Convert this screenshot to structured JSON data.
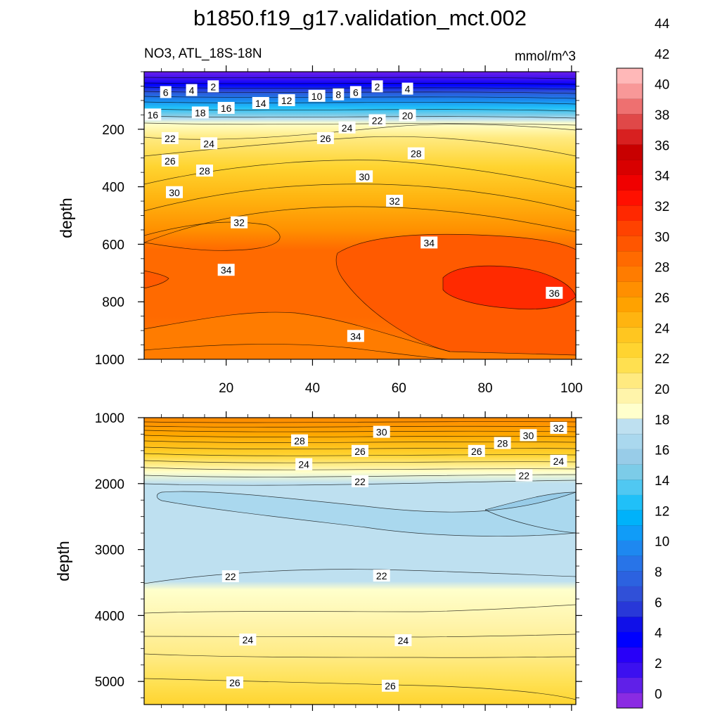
{
  "title": "b1850.f19_g17.validation_mct.002",
  "subtitle_left": "NO3, ATL_18S-18N",
  "subtitle_right": "mmol/m^3",
  "colors": {
    "palette": [
      "#8a2be2",
      "#6020e8",
      "#3c10f0",
      "#2800f8",
      "#0000ff",
      "#1010e8",
      "#2838d8",
      "#3050d8",
      "#2c62e0",
      "#2874e8",
      "#1e88f0",
      "#109cf8",
      "#00b2fa",
      "#20c0f8",
      "#50c8f2",
      "#7ccce8",
      "#98cce8",
      "#aad8ee",
      "#bee0f0",
      "#ffffcc",
      "#fff4aa",
      "#ffea80",
      "#ffe050",
      "#ffd430",
      "#ffc620",
      "#ffb410",
      "#ffa200",
      "#ff8f00",
      "#ff7c00",
      "#ff6a00",
      "#ff5600",
      "#ff4200",
      "#ff2800",
      "#ff1000",
      "#f00000",
      "#d80000",
      "#c80000",
      "#d82020",
      "#e04848",
      "#ee7070",
      "#f89898",
      "#ffb8b8"
    ]
  },
  "chart_data": [
    {
      "type": "contour",
      "panel": "upper",
      "xlim": [
        1,
        101
      ],
      "ylim": [
        1000,
        0
      ],
      "ylabel": "depth",
      "xticks": [
        20,
        40,
        60,
        80,
        100
      ],
      "yticks": [
        200,
        400,
        600,
        800,
        1000
      ],
      "contour_labels": [
        {
          "v": "6",
          "x": 6,
          "d": 72
        },
        {
          "v": "4",
          "x": 12,
          "d": 65
        },
        {
          "v": "2",
          "x": 17,
          "d": 52
        },
        {
          "v": "16",
          "x": 3,
          "d": 150
        },
        {
          "v": "18",
          "x": 14,
          "d": 143
        },
        {
          "v": "16",
          "x": 20,
          "d": 127
        },
        {
          "v": "14",
          "x": 28,
          "d": 110
        },
        {
          "v": "12",
          "x": 34,
          "d": 100
        },
        {
          "v": "10",
          "x": 41,
          "d": 85
        },
        {
          "v": "8",
          "x": 46,
          "d": 80
        },
        {
          "v": "6",
          "x": 50,
          "d": 72
        },
        {
          "v": "2",
          "x": 55,
          "d": 52
        },
        {
          "v": "4",
          "x": 62,
          "d": 60
        },
        {
          "v": "20",
          "x": 62,
          "d": 153
        },
        {
          "v": "22",
          "x": 55,
          "d": 170
        },
        {
          "v": "24",
          "x": 48,
          "d": 195
        },
        {
          "v": "22",
          "x": 7,
          "d": 232
        },
        {
          "v": "24",
          "x": 16,
          "d": 250
        },
        {
          "v": "26",
          "x": 43,
          "d": 232
        },
        {
          "v": "26",
          "x": 7,
          "d": 310
        },
        {
          "v": "28",
          "x": 15,
          "d": 345
        },
        {
          "v": "28",
          "x": 64,
          "d": 285
        },
        {
          "v": "30",
          "x": 52,
          "d": 365
        },
        {
          "v": "30",
          "x": 8,
          "d": 420
        },
        {
          "v": "32",
          "x": 59,
          "d": 450
        },
        {
          "v": "32",
          "x": 23,
          "d": 525
        },
        {
          "v": "34",
          "x": 67,
          "d": 595
        },
        {
          "v": "34",
          "x": 20,
          "d": 690
        },
        {
          "v": "36",
          "x": 96,
          "d": 770
        },
        {
          "v": "34",
          "x": 50,
          "d": 920
        }
      ]
    },
    {
      "type": "contour",
      "panel": "lower",
      "xlim": [
        1,
        101
      ],
      "ylim": [
        5350,
        1000
      ],
      "ylabel": "depth",
      "yticks": [
        1000,
        2000,
        3000,
        4000,
        5000
      ],
      "contour_labels": [
        {
          "v": "30",
          "x": 56,
          "d": 1220
        },
        {
          "v": "32",
          "x": 97,
          "d": 1160
        },
        {
          "v": "30",
          "x": 90,
          "d": 1270
        },
        {
          "v": "28",
          "x": 37,
          "d": 1350
        },
        {
          "v": "28",
          "x": 84,
          "d": 1390
        },
        {
          "v": "26",
          "x": 51,
          "d": 1510
        },
        {
          "v": "26",
          "x": 78,
          "d": 1510
        },
        {
          "v": "24",
          "x": 38,
          "d": 1710
        },
        {
          "v": "24",
          "x": 97,
          "d": 1660
        },
        {
          "v": "22",
          "x": 51,
          "d": 1970
        },
        {
          "v": "22",
          "x": 89,
          "d": 1880
        },
        {
          "v": "22",
          "x": 21,
          "d": 3410
        },
        {
          "v": "22",
          "x": 56,
          "d": 3400
        },
        {
          "v": "24",
          "x": 25,
          "d": 4370
        },
        {
          "v": "24",
          "x": 61,
          "d": 4380
        },
        {
          "v": "26",
          "x": 22,
          "d": 5020
        },
        {
          "v": "26",
          "x": 58,
          "d": 5070
        }
      ]
    }
  ],
  "colorbar": {
    "labels": [
      "0",
      "2",
      "4",
      "6",
      "8",
      "10",
      "12",
      "14",
      "16",
      "18",
      "20",
      "22",
      "24",
      "26",
      "28",
      "30",
      "32",
      "34",
      "36",
      "38",
      "40",
      "42",
      "44"
    ]
  }
}
